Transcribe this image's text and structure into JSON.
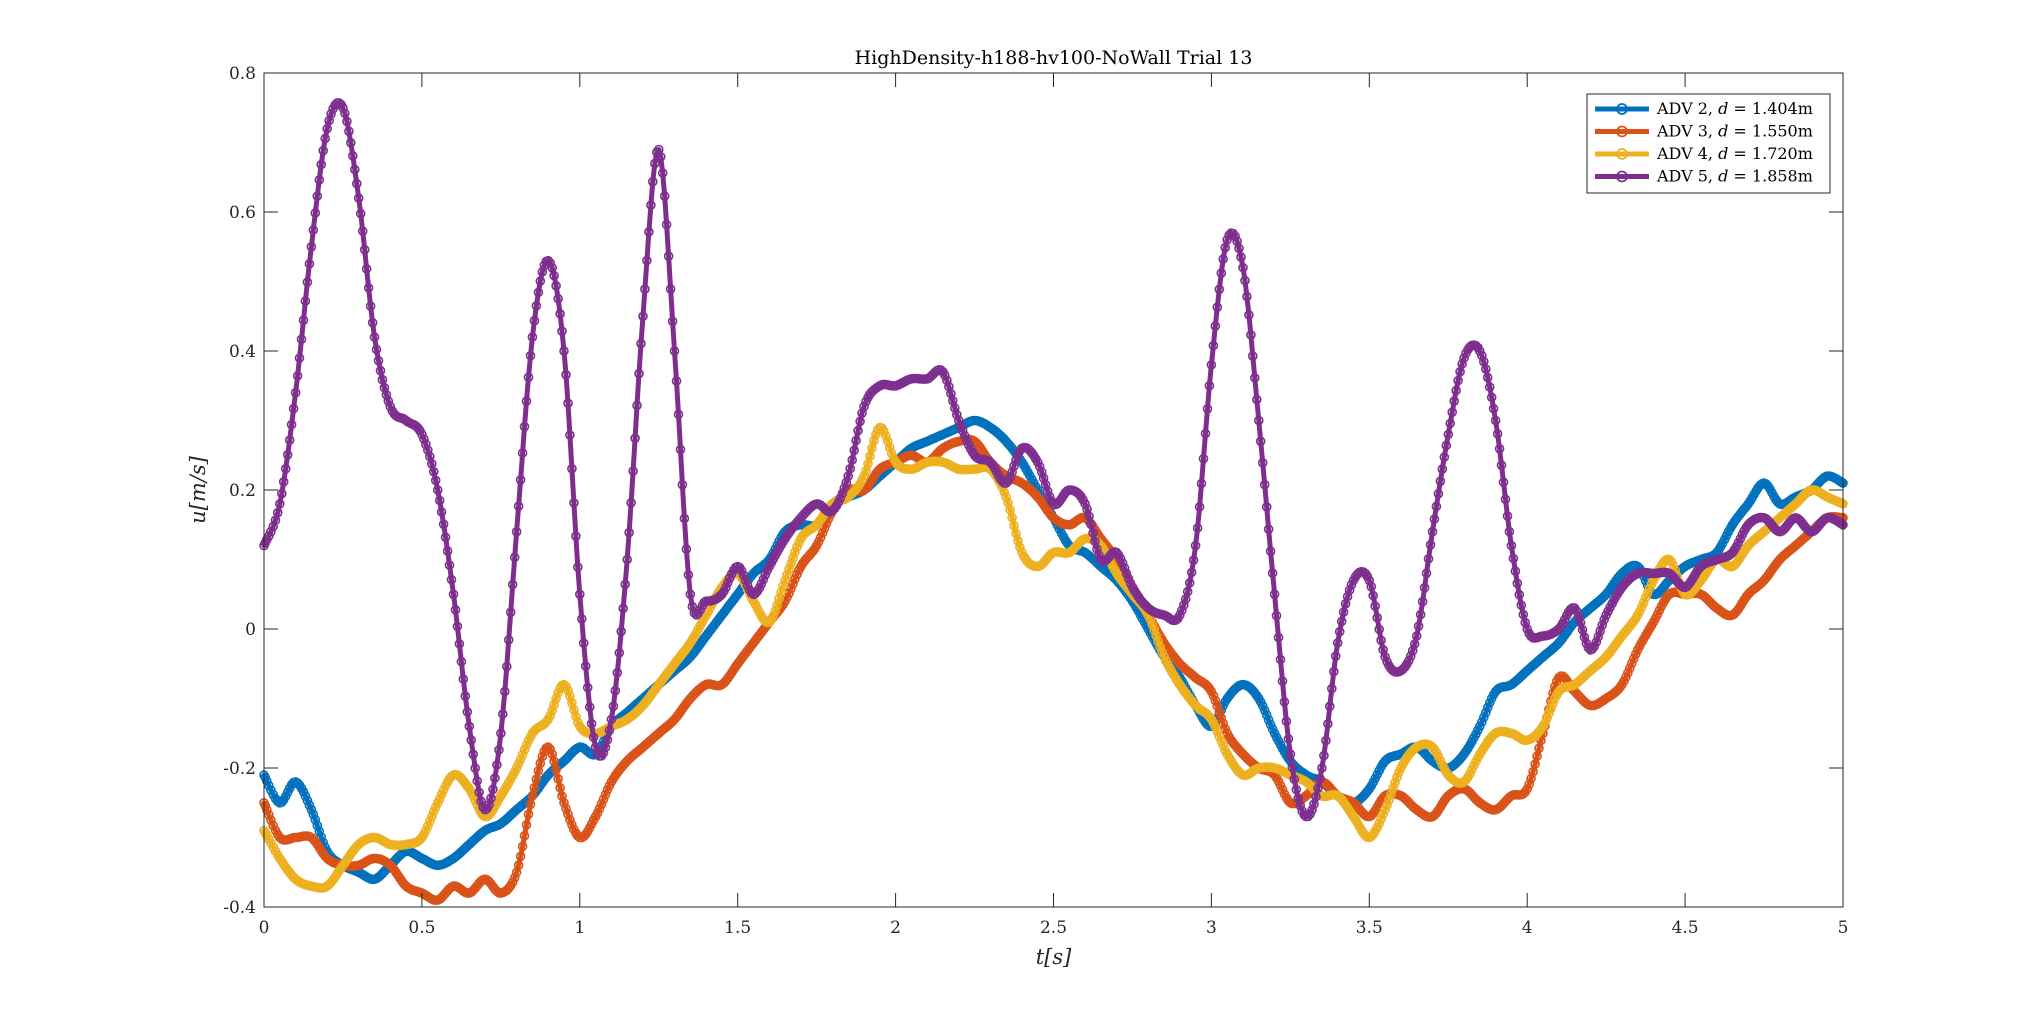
{
  "chart_data": {
    "type": "line",
    "title": "HighDensity-h188-hv100-NoWall Trial 13",
    "xlabel": "t[s]",
    "ylabel": "u[m/s]",
    "xlim": [
      0,
      5
    ],
    "ylim": [
      -0.4,
      0.8
    ],
    "xticks": [
      0,
      0.5,
      1,
      1.5,
      2,
      2.5,
      3,
      3.5,
      4,
      4.5,
      5
    ],
    "xtick_labels": [
      "0",
      "0.5",
      "1",
      "1.5",
      "2",
      "2.5",
      "3",
      "3.5",
      "4",
      "4.5",
      "5"
    ],
    "yticks": [
      -0.4,
      -0.2,
      0,
      0.2,
      0.4,
      0.6,
      0.8
    ],
    "ytick_labels": [
      "-0.4",
      "-0.2",
      "0",
      "0.2",
      "0.4",
      "0.6",
      "0.8"
    ],
    "grid": false,
    "legend_position": "top-right",
    "marker": "circle",
    "series": [
      {
        "name": "ADV 2, d = 1.404m",
        "legend_prefix": "ADV 2, ",
        "legend_var": "d",
        "legend_suffix": " = 1.404m",
        "color": "#0072BD",
        "x": [
          0,
          0.05,
          0.1,
          0.15,
          0.2,
          0.25,
          0.3,
          0.35,
          0.4,
          0.45,
          0.5,
          0.55,
          0.6,
          0.65,
          0.7,
          0.75,
          0.8,
          0.85,
          0.9,
          0.95,
          1.0,
          1.05,
          1.1,
          1.15,
          1.2,
          1.25,
          1.3,
          1.35,
          1.4,
          1.45,
          1.5,
          1.55,
          1.6,
          1.65,
          1.7,
          1.75,
          1.8,
          1.85,
          1.9,
          1.95,
          2.0,
          2.05,
          2.1,
          2.15,
          2.2,
          2.25,
          2.3,
          2.35,
          2.4,
          2.45,
          2.5,
          2.55,
          2.6,
          2.65,
          2.7,
          2.75,
          2.8,
          2.85,
          2.9,
          2.95,
          3.0,
          3.05,
          3.1,
          3.15,
          3.2,
          3.25,
          3.3,
          3.35,
          3.4,
          3.45,
          3.5,
          3.55,
          3.6,
          3.65,
          3.7,
          3.75,
          3.8,
          3.85,
          3.9,
          3.95,
          4.0,
          4.05,
          4.1,
          4.15,
          4.2,
          4.25,
          4.3,
          4.35,
          4.4,
          4.45,
          4.5,
          4.55,
          4.6,
          4.65,
          4.7,
          4.75,
          4.8,
          4.85,
          4.9,
          4.95,
          5.0
        ],
        "values": [
          -0.21,
          -0.25,
          -0.22,
          -0.26,
          -0.32,
          -0.34,
          -0.35,
          -0.36,
          -0.34,
          -0.32,
          -0.33,
          -0.34,
          -0.33,
          -0.31,
          -0.29,
          -0.28,
          -0.26,
          -0.24,
          -0.21,
          -0.19,
          -0.17,
          -0.18,
          -0.14,
          -0.12,
          -0.1,
          -0.08,
          -0.06,
          -0.04,
          -0.01,
          0.02,
          0.05,
          0.08,
          0.1,
          0.14,
          0.15,
          0.15,
          0.18,
          0.19,
          0.2,
          0.22,
          0.24,
          0.26,
          0.27,
          0.28,
          0.29,
          0.3,
          0.29,
          0.27,
          0.24,
          0.2,
          0.16,
          0.12,
          0.11,
          0.09,
          0.07,
          0.04,
          0.0,
          -0.04,
          -0.07,
          -0.11,
          -0.14,
          -0.1,
          -0.08,
          -0.1,
          -0.15,
          -0.19,
          -0.21,
          -0.22,
          -0.24,
          -0.25,
          -0.23,
          -0.19,
          -0.18,
          -0.17,
          -0.19,
          -0.2,
          -0.18,
          -0.14,
          -0.09,
          -0.08,
          -0.06,
          -0.04,
          -0.02,
          0.01,
          0.03,
          0.05,
          0.08,
          0.09,
          0.05,
          0.07,
          0.09,
          0.1,
          0.11,
          0.15,
          0.18,
          0.21,
          0.18,
          0.19,
          0.2,
          0.22,
          0.21
        ]
      },
      {
        "name": "ADV 3, d = 1.550m",
        "legend_prefix": "ADV 3, ",
        "legend_var": "d",
        "legend_suffix": " = 1.550m",
        "color": "#D95319",
        "x": [
          0,
          0.05,
          0.1,
          0.15,
          0.2,
          0.25,
          0.3,
          0.35,
          0.4,
          0.45,
          0.5,
          0.55,
          0.6,
          0.65,
          0.7,
          0.75,
          0.8,
          0.85,
          0.9,
          0.95,
          1.0,
          1.05,
          1.1,
          1.15,
          1.2,
          1.25,
          1.3,
          1.35,
          1.4,
          1.45,
          1.5,
          1.55,
          1.6,
          1.65,
          1.7,
          1.75,
          1.8,
          1.85,
          1.9,
          1.95,
          2.0,
          2.05,
          2.1,
          2.15,
          2.2,
          2.25,
          2.3,
          2.35,
          2.4,
          2.45,
          2.5,
          2.55,
          2.6,
          2.65,
          2.7,
          2.75,
          2.8,
          2.85,
          2.9,
          2.95,
          3.0,
          3.05,
          3.1,
          3.15,
          3.2,
          3.25,
          3.3,
          3.35,
          3.4,
          3.45,
          3.5,
          3.55,
          3.6,
          3.65,
          3.7,
          3.75,
          3.8,
          3.85,
          3.9,
          3.95,
          4.0,
          4.05,
          4.1,
          4.15,
          4.2,
          4.25,
          4.3,
          4.35,
          4.4,
          4.45,
          4.5,
          4.55,
          4.6,
          4.65,
          4.7,
          4.75,
          4.8,
          4.85,
          4.9,
          4.95,
          5.0
        ],
        "values": [
          -0.25,
          -0.3,
          -0.3,
          -0.3,
          -0.33,
          -0.34,
          -0.34,
          -0.33,
          -0.34,
          -0.37,
          -0.38,
          -0.39,
          -0.37,
          -0.38,
          -0.36,
          -0.38,
          -0.35,
          -0.24,
          -0.17,
          -0.25,
          -0.3,
          -0.27,
          -0.22,
          -0.19,
          -0.17,
          -0.15,
          -0.13,
          -0.1,
          -0.08,
          -0.08,
          -0.05,
          -0.02,
          0.01,
          0.04,
          0.09,
          0.12,
          0.17,
          0.2,
          0.2,
          0.23,
          0.24,
          0.25,
          0.24,
          0.26,
          0.27,
          0.27,
          0.24,
          0.22,
          0.21,
          0.19,
          0.16,
          0.15,
          0.16,
          0.13,
          0.1,
          0.06,
          0.02,
          -0.02,
          -0.05,
          -0.07,
          -0.09,
          -0.15,
          -0.18,
          -0.2,
          -0.21,
          -0.25,
          -0.24,
          -0.22,
          -0.24,
          -0.25,
          -0.27,
          -0.24,
          -0.24,
          -0.26,
          -0.27,
          -0.24,
          -0.23,
          -0.25,
          -0.26,
          -0.24,
          -0.23,
          -0.15,
          -0.07,
          -0.09,
          -0.11,
          -0.1,
          -0.08,
          -0.03,
          0.01,
          0.05,
          0.05,
          0.05,
          0.03,
          0.02,
          0.05,
          0.07,
          0.1,
          0.12,
          0.14,
          0.16,
          0.16
        ]
      },
      {
        "name": "ADV 4, d = 1.720m",
        "legend_prefix": "ADV 4, ",
        "legend_var": "d",
        "legend_suffix": " = 1.720m",
        "color": "#EDB120",
        "x": [
          0,
          0.05,
          0.1,
          0.15,
          0.2,
          0.25,
          0.3,
          0.35,
          0.4,
          0.45,
          0.5,
          0.55,
          0.6,
          0.65,
          0.7,
          0.75,
          0.8,
          0.85,
          0.9,
          0.95,
          1.0,
          1.05,
          1.1,
          1.15,
          1.2,
          1.25,
          1.3,
          1.35,
          1.4,
          1.45,
          1.5,
          1.55,
          1.6,
          1.65,
          1.7,
          1.75,
          1.8,
          1.85,
          1.9,
          1.95,
          2.0,
          2.05,
          2.1,
          2.15,
          2.2,
          2.25,
          2.3,
          2.35,
          2.4,
          2.45,
          2.5,
          2.55,
          2.6,
          2.65,
          2.7,
          2.75,
          2.8,
          2.85,
          2.9,
          2.95,
          3.0,
          3.05,
          3.1,
          3.15,
          3.2,
          3.25,
          3.3,
          3.35,
          3.4,
          3.45,
          3.5,
          3.55,
          3.6,
          3.65,
          3.7,
          3.75,
          3.8,
          3.85,
          3.9,
          3.95,
          4.0,
          4.05,
          4.1,
          4.15,
          4.2,
          4.25,
          4.3,
          4.35,
          4.4,
          4.45,
          4.5,
          4.55,
          4.6,
          4.65,
          4.7,
          4.75,
          4.8,
          4.85,
          4.9,
          4.95,
          5.0
        ],
        "values": [
          -0.29,
          -0.33,
          -0.36,
          -0.37,
          -0.37,
          -0.34,
          -0.31,
          -0.3,
          -0.31,
          -0.31,
          -0.3,
          -0.25,
          -0.21,
          -0.23,
          -0.27,
          -0.24,
          -0.2,
          -0.15,
          -0.13,
          -0.08,
          -0.14,
          -0.15,
          -0.14,
          -0.13,
          -0.11,
          -0.08,
          -0.05,
          -0.02,
          0.02,
          0.06,
          0.08,
          0.04,
          0.01,
          0.07,
          0.13,
          0.15,
          0.18,
          0.19,
          0.22,
          0.29,
          0.24,
          0.23,
          0.24,
          0.24,
          0.23,
          0.23,
          0.23,
          0.19,
          0.11,
          0.09,
          0.11,
          0.11,
          0.13,
          0.12,
          0.08,
          0.05,
          0.02,
          -0.04,
          -0.08,
          -0.11,
          -0.13,
          -0.18,
          -0.21,
          -0.2,
          -0.2,
          -0.21,
          -0.22,
          -0.24,
          -0.24,
          -0.27,
          -0.3,
          -0.26,
          -0.2,
          -0.17,
          -0.17,
          -0.21,
          -0.22,
          -0.18,
          -0.15,
          -0.15,
          -0.16,
          -0.14,
          -0.09,
          -0.08,
          -0.06,
          -0.04,
          -0.01,
          0.02,
          0.07,
          0.1,
          0.05,
          0.07,
          0.1,
          0.09,
          0.12,
          0.14,
          0.16,
          0.18,
          0.2,
          0.19,
          0.18
        ]
      },
      {
        "name": "ADV 5, d = 1.858m",
        "legend_prefix": "ADV 5, ",
        "legend_var": "d",
        "legend_suffix": " = 1.858m",
        "color": "#7E2F8E",
        "x": [
          0,
          0.05,
          0.1,
          0.15,
          0.2,
          0.25,
          0.3,
          0.35,
          0.4,
          0.45,
          0.5,
          0.55,
          0.6,
          0.65,
          0.7,
          0.75,
          0.8,
          0.85,
          0.9,
          0.95,
          1.0,
          1.05,
          1.1,
          1.15,
          1.2,
          1.25,
          1.3,
          1.35,
          1.4,
          1.45,
          1.5,
          1.55,
          1.6,
          1.65,
          1.7,
          1.75,
          1.8,
          1.85,
          1.9,
          1.95,
          2.0,
          2.05,
          2.1,
          2.15,
          2.2,
          2.25,
          2.3,
          2.35,
          2.4,
          2.45,
          2.5,
          2.55,
          2.6,
          2.65,
          2.7,
          2.75,
          2.8,
          2.85,
          2.9,
          2.95,
          3.0,
          3.05,
          3.1,
          3.15,
          3.2,
          3.25,
          3.3,
          3.35,
          3.4,
          3.45,
          3.5,
          3.55,
          3.6,
          3.65,
          3.7,
          3.75,
          3.8,
          3.85,
          3.9,
          3.95,
          4.0,
          4.05,
          4.1,
          4.15,
          4.2,
          4.25,
          4.3,
          4.35,
          4.4,
          4.45,
          4.5,
          4.55,
          4.6,
          4.65,
          4.7,
          4.75,
          4.8,
          4.85,
          4.9,
          4.95,
          5.0
        ],
        "values": [
          0.12,
          0.18,
          0.34,
          0.55,
          0.72,
          0.75,
          0.62,
          0.42,
          0.32,
          0.3,
          0.28,
          0.2,
          0.05,
          -0.14,
          -0.26,
          -0.15,
          0.14,
          0.42,
          0.53,
          0.4,
          0.05,
          -0.17,
          -0.13,
          0.1,
          0.45,
          0.69,
          0.4,
          0.05,
          0.04,
          0.05,
          0.09,
          0.05,
          0.09,
          0.13,
          0.16,
          0.18,
          0.17,
          0.22,
          0.32,
          0.35,
          0.35,
          0.36,
          0.36,
          0.37,
          0.3,
          0.25,
          0.24,
          0.21,
          0.26,
          0.24,
          0.18,
          0.2,
          0.18,
          0.1,
          0.11,
          0.06,
          0.03,
          0.02,
          0.02,
          0.12,
          0.38,
          0.56,
          0.52,
          0.3,
          0.05,
          -0.18,
          -0.27,
          -0.2,
          -0.02,
          0.07,
          0.07,
          -0.04,
          -0.06,
          -0.01,
          0.14,
          0.28,
          0.39,
          0.4,
          0.3,
          0.12,
          -0.0,
          -0.01,
          0.0,
          0.03,
          -0.03,
          0.02,
          0.06,
          0.08,
          0.08,
          0.08,
          0.06,
          0.09,
          0.1,
          0.11,
          0.15,
          0.16,
          0.14,
          0.16,
          0.14,
          0.16,
          0.15
        ]
      }
    ]
  }
}
